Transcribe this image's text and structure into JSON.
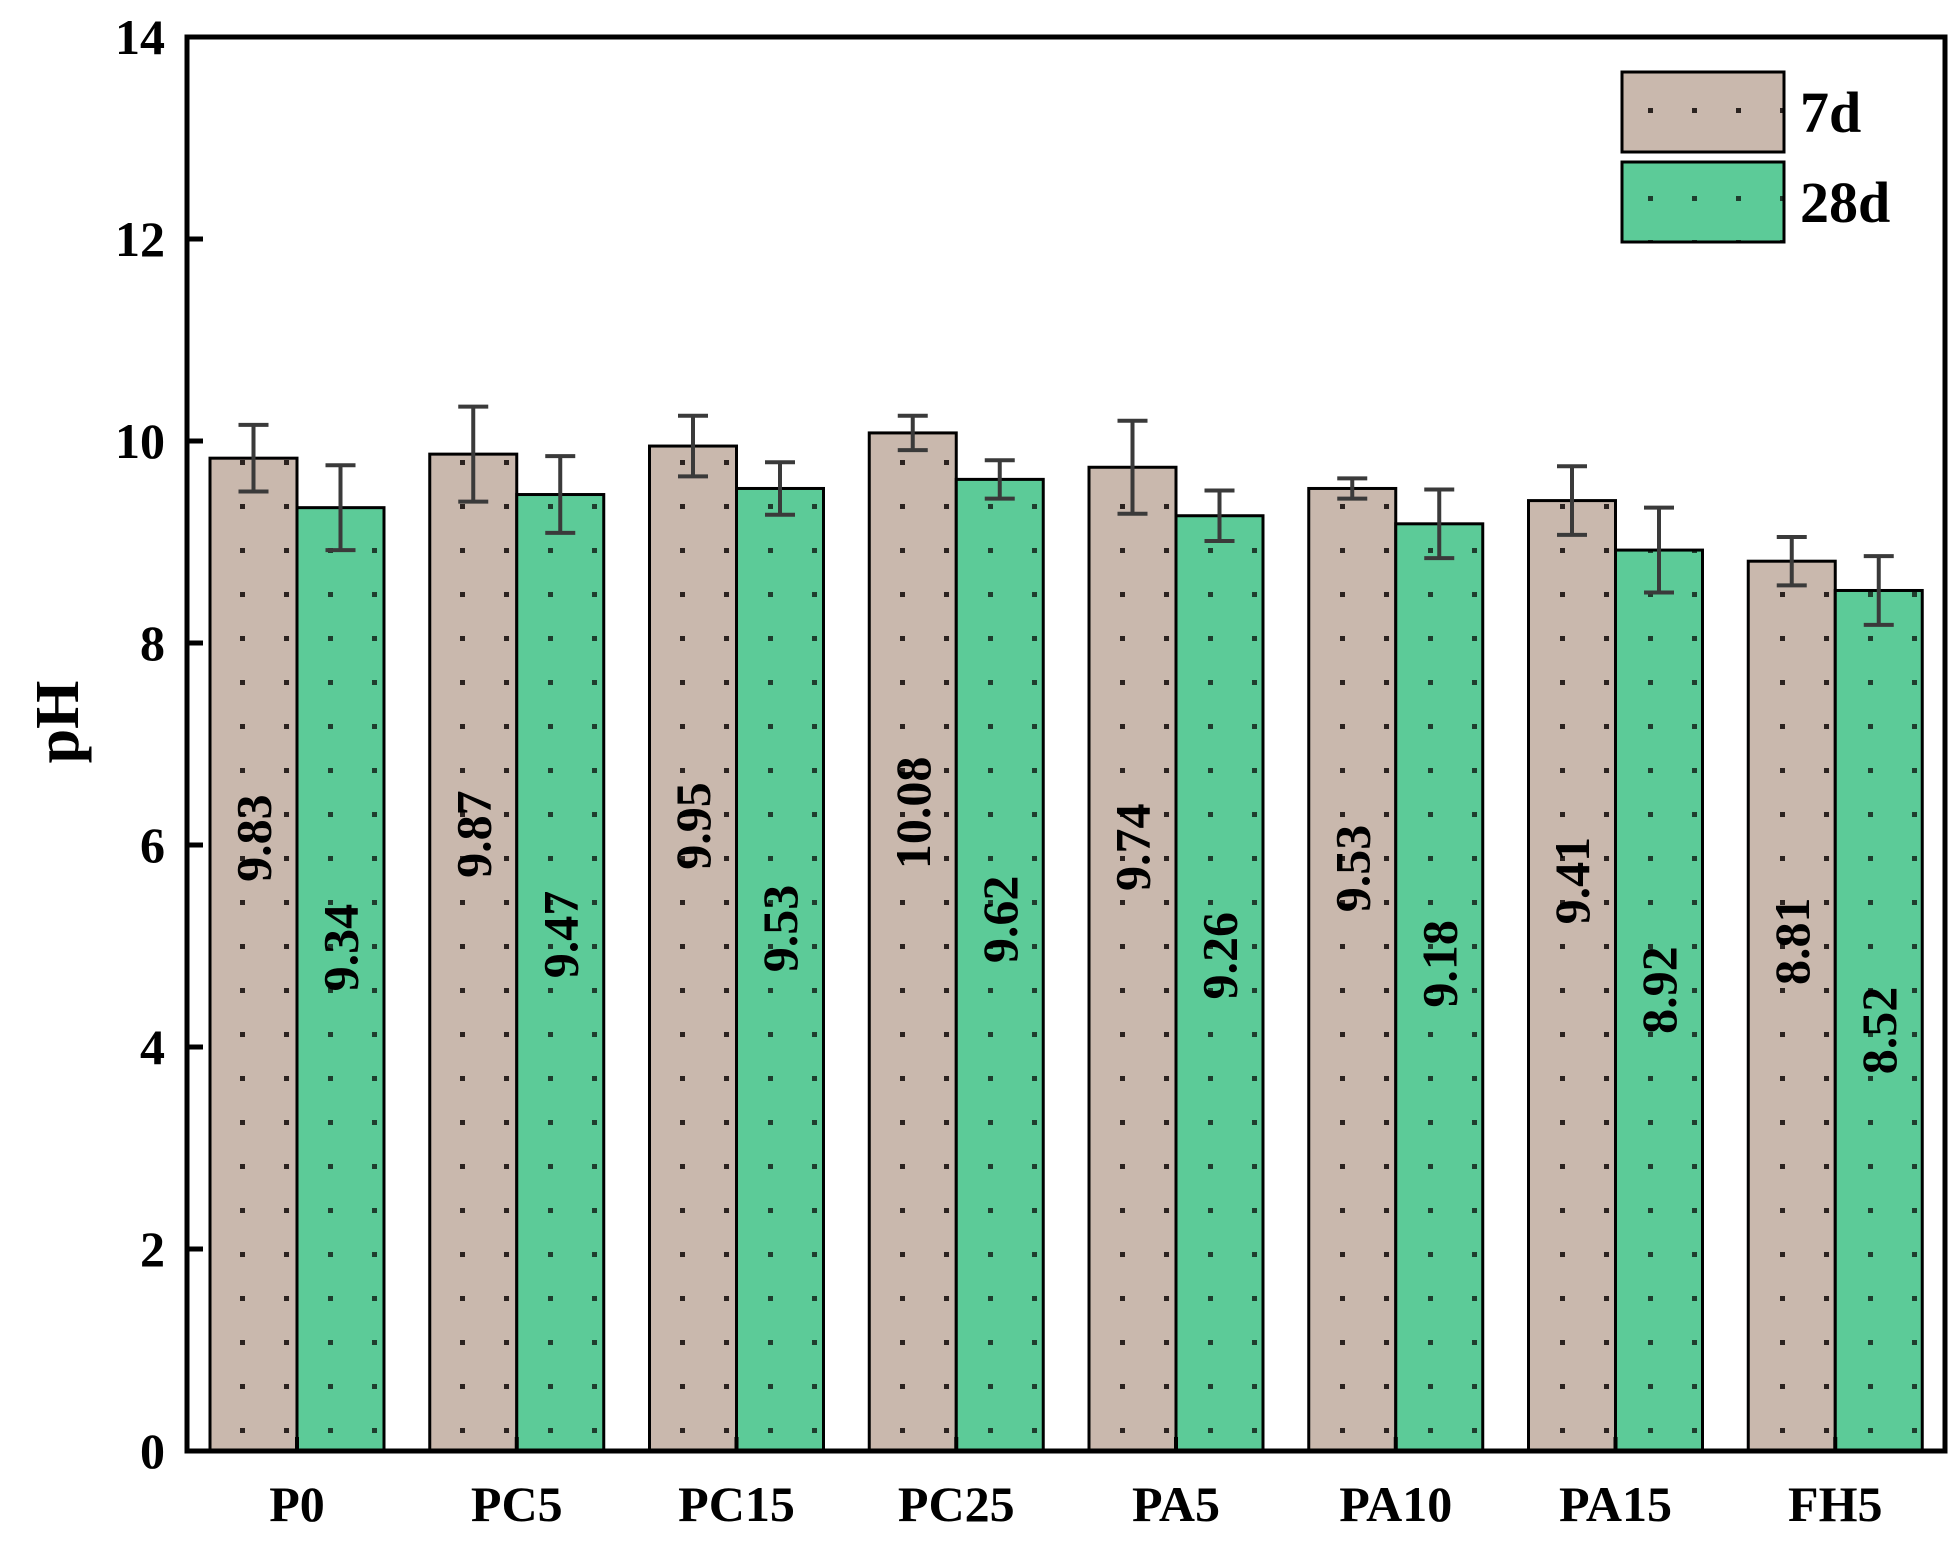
{
  "chart_data": {
    "type": "bar",
    "xlabel": "",
    "ylabel": "pH",
    "ylim": [
      0,
      14
    ],
    "yticks": [
      0,
      2,
      4,
      6,
      8,
      10,
      12,
      14
    ],
    "grid": false,
    "legend_position": "top-right",
    "categories": [
      "P0",
      "PC5",
      "PC15",
      "PC25",
      "PA5",
      "PA10",
      "PA15",
      "FH5"
    ],
    "series": [
      {
        "name": "7d",
        "color": "#c9b8ad",
        "values": [
          9.83,
          9.87,
          9.95,
          10.08,
          9.74,
          9.53,
          9.41,
          8.81
        ],
        "errors": [
          0.33,
          0.47,
          0.3,
          0.17,
          0.46,
          0.1,
          0.34,
          0.24
        ],
        "labels": [
          "9.83",
          "9.87",
          "9.95",
          "10.08",
          "9.74",
          "9.53",
          "9.41",
          "8.81"
        ]
      },
      {
        "name": "28d",
        "color": "#5ccb98",
        "values": [
          9.34,
          9.47,
          9.53,
          9.62,
          9.26,
          9.18,
          8.92,
          8.52
        ],
        "errors": [
          0.42,
          0.38,
          0.26,
          0.19,
          0.25,
          0.34,
          0.42,
          0.34
        ],
        "labels": [
          "9.34",
          "9.47",
          "9.53",
          "9.62",
          "9.26",
          "9.18",
          "8.92",
          "8.52"
        ]
      }
    ]
  }
}
